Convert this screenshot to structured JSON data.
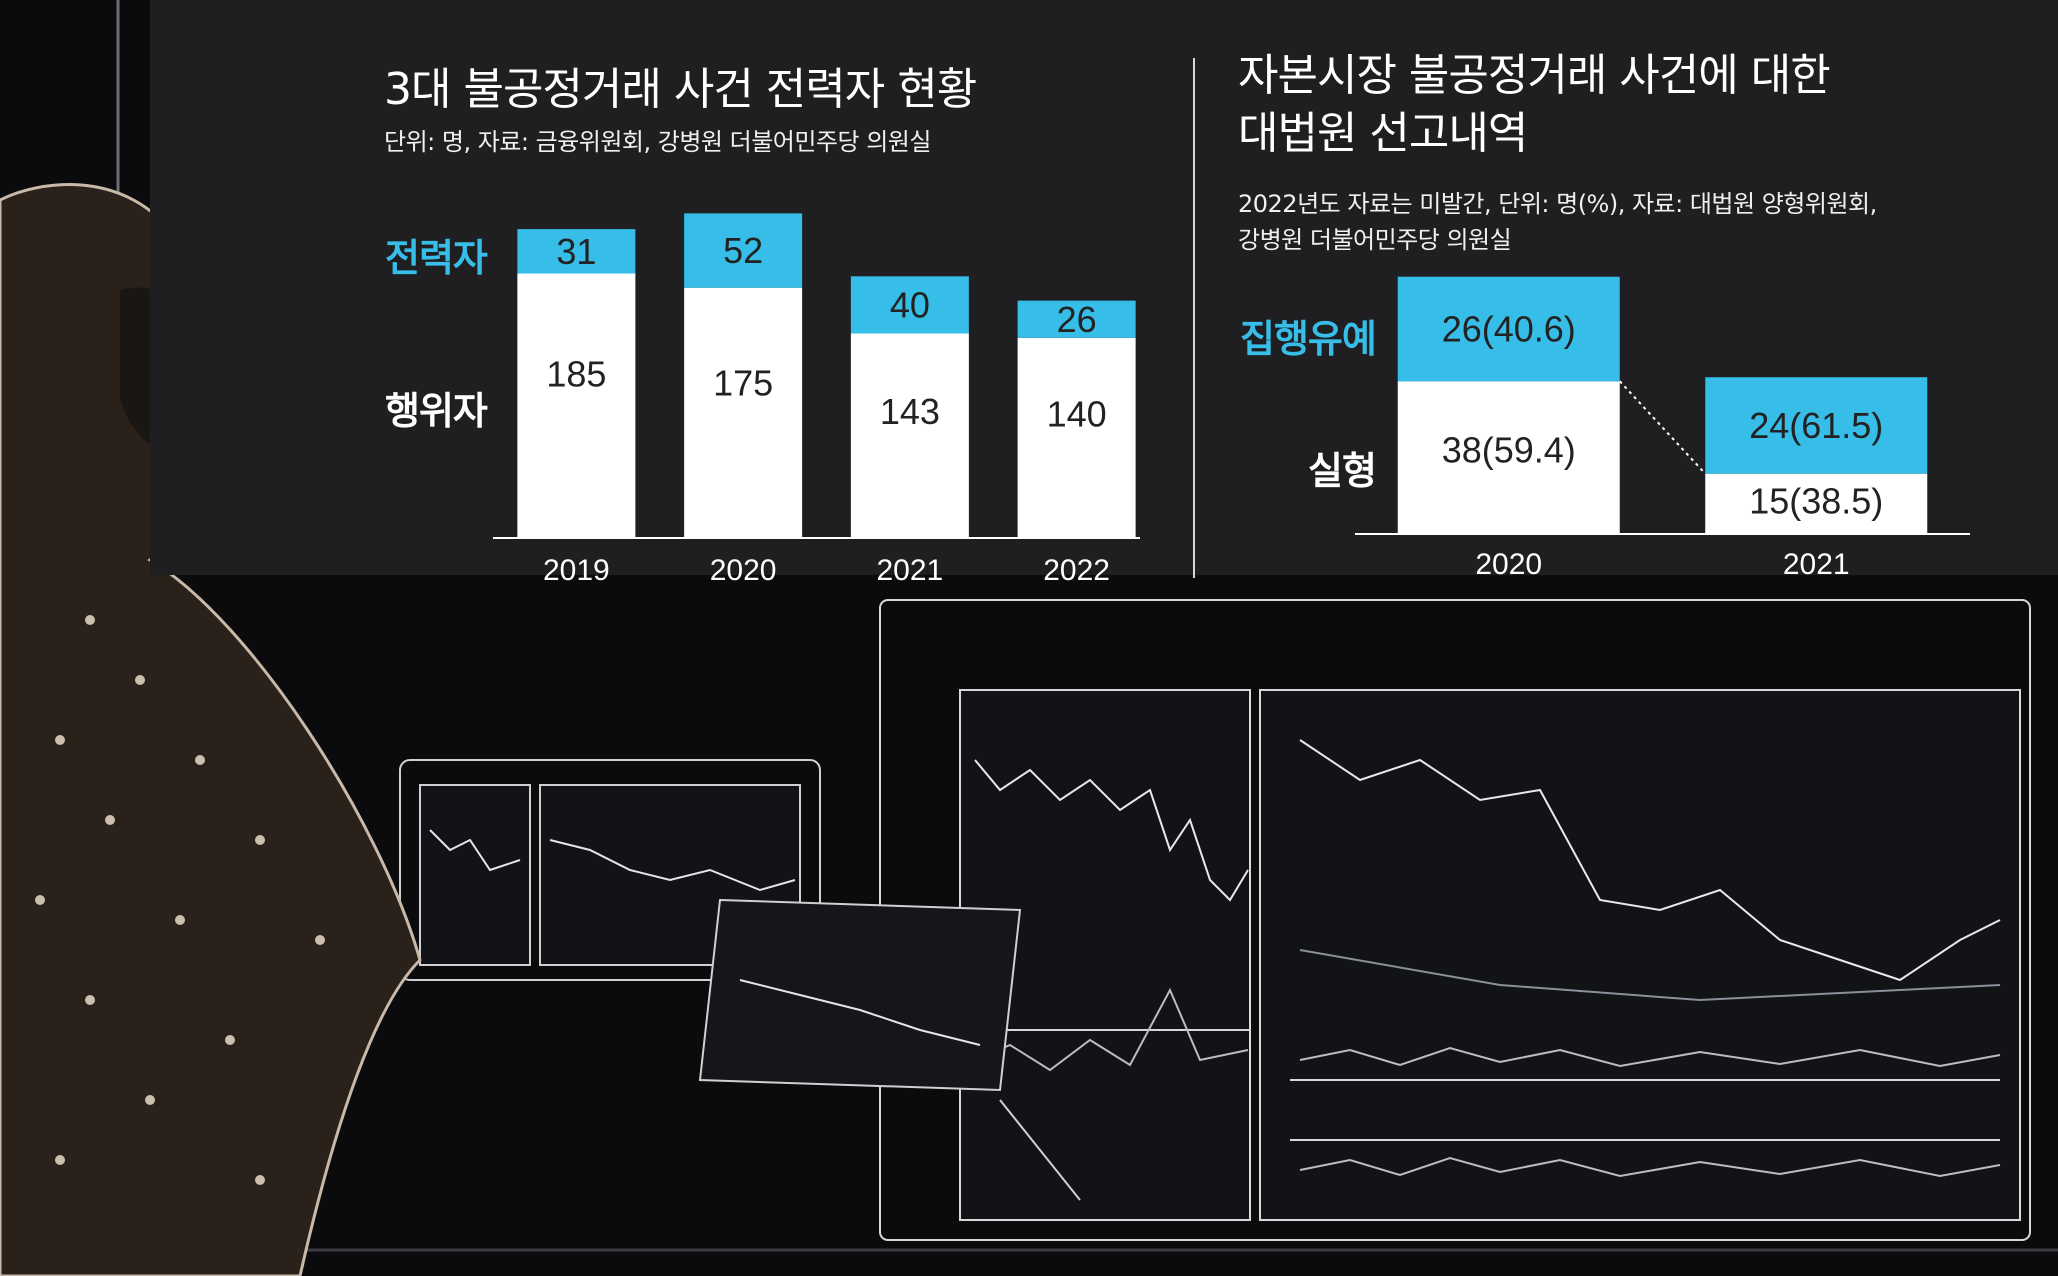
{
  "colors": {
    "background": "#1f1f22",
    "accent": "#36bde8",
    "bar_base": "#ffffff",
    "text": "#ffffff",
    "bar_text": "#222222"
  },
  "chart_data": [
    {
      "type": "bar",
      "stacked": true,
      "title": "3대 불공정거래 사건 전력자 현황",
      "subtitle": "단위: 명, 자료: 금융위원회, 강병원 더불어민주당 의원실",
      "categories": [
        "2019",
        "2020",
        "2021",
        "2022"
      ],
      "series": [
        {
          "name": "행위자",
          "values": [
            185,
            175,
            143,
            140
          ],
          "labels": [
            "185",
            "175",
            "143",
            "140"
          ],
          "color": "#ffffff"
        },
        {
          "name": "전력자",
          "values": [
            31,
            52,
            40,
            26
          ],
          "labels": [
            "31",
            "52",
            "40",
            "26"
          ],
          "color": "#36bde8"
        }
      ],
      "grid": false
    },
    {
      "type": "bar",
      "stacked": true,
      "title": [
        "자본시장 불공정거래 사건에 대한",
        "대법원 선고내역"
      ],
      "subtitle": [
        "2022년도 자료는 미발간, 단위: 명(%), 자료: 대법원 양형위원회,",
        "강병원 더불어민주당 의원실"
      ],
      "categories": [
        "2020",
        "2021"
      ],
      "series": [
        {
          "name": "실형",
          "values": [
            38,
            15
          ],
          "labels": [
            "38(59.4)",
            "15(38.5)"
          ],
          "color": "#ffffff"
        },
        {
          "name": "집행유예",
          "values": [
            26,
            24
          ],
          "labels": [
            "26(40.6)",
            "24(61.5)"
          ],
          "color": "#36bde8"
        }
      ],
      "grid": false
    }
  ]
}
